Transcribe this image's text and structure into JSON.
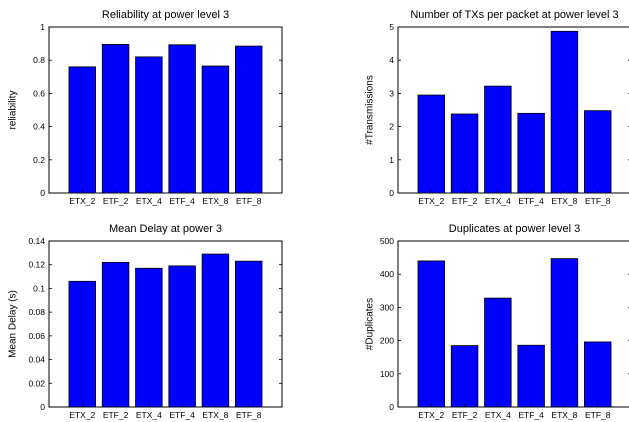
{
  "chart_data": [
    {
      "type": "bar",
      "title": "Reliability at power level 3",
      "xlabel": "",
      "ylabel": "reliability",
      "categories": [
        "ETX_2",
        "ETF_2",
        "ETX_4",
        "ETF_4",
        "ETX_8",
        "ETF_8"
      ],
      "values": [
        0.76,
        0.895,
        0.82,
        0.893,
        0.765,
        0.885
      ],
      "ylim": [
        0,
        1
      ],
      "yticks": [
        0,
        0.2,
        0.4,
        0.6,
        0.8,
        1
      ],
      "ytick_labels": [
        "0",
        "0.2",
        "0.4",
        "0.6",
        "0.8",
        "1"
      ],
      "bar_color": "#0000ff",
      "grid": false
    },
    {
      "type": "bar",
      "title": "Number of TXs per packet at power level 3",
      "xlabel": "",
      "ylabel": "#Transmissions",
      "categories": [
        "ETX_2",
        "ETF_2",
        "ETX_4",
        "ETF_4",
        "ETX_8",
        "ETF_8"
      ],
      "values": [
        2.95,
        2.38,
        3.22,
        2.4,
        4.87,
        2.48
      ],
      "ylim": [
        0,
        5
      ],
      "yticks": [
        0,
        1,
        2,
        3,
        4,
        5
      ],
      "ytick_labels": [
        "0",
        "1",
        "2",
        "3",
        "4",
        "5"
      ],
      "bar_color": "#0000ff",
      "grid": false
    },
    {
      "type": "bar",
      "title": "Mean Delay at power 3",
      "xlabel": "",
      "ylabel": "Mean Delay (s)",
      "categories": [
        "ETX_2",
        "ETF_2",
        "ETX_4",
        "ETF_4",
        "ETX_8",
        "ETF_8"
      ],
      "values": [
        0.106,
        0.122,
        0.117,
        0.119,
        0.129,
        0.123
      ],
      "ylim": [
        0,
        0.14
      ],
      "yticks": [
        0,
        0.02,
        0.04,
        0.06,
        0.08,
        0.1,
        0.12,
        0.14
      ],
      "ytick_labels": [
        "0",
        "0.02",
        "0.04",
        "0.06",
        "0.08",
        "0.1",
        "0.12",
        "0.14"
      ],
      "bar_color": "#0000ff",
      "grid": false
    },
    {
      "type": "bar",
      "title": "Duplicates at power level 3",
      "xlabel": "",
      "ylabel": "#Duplicates",
      "categories": [
        "ETX_2",
        "ETF_2",
        "ETX_4",
        "ETF_4",
        "ETX_8",
        "ETF_8"
      ],
      "values": [
        440,
        185,
        328,
        186,
        447,
        196
      ],
      "ylim": [
        0,
        500
      ],
      "yticks": [
        0,
        100,
        200,
        300,
        400,
        500
      ],
      "ytick_labels": [
        "0",
        "100",
        "200",
        "300",
        "400",
        "500"
      ],
      "bar_color": "#0000ff",
      "grid": false
    }
  ]
}
